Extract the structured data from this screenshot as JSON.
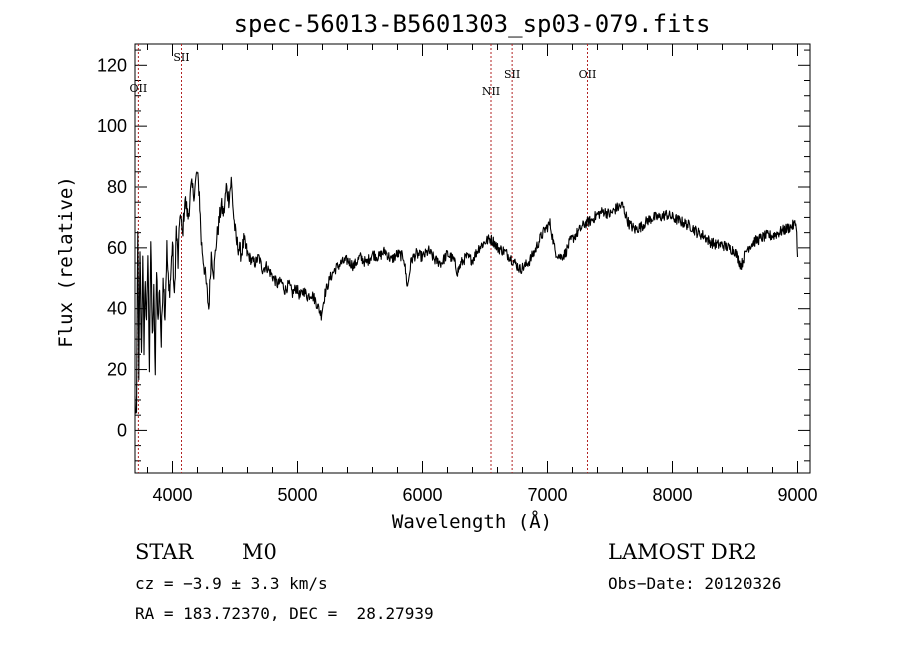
{
  "chart_data": {
    "type": "line",
    "title": "spec-56013-B5601303_sp03-079.fits",
    "xlabel": "Wavelength (Å)",
    "ylabel": "Flux (relative)",
    "xlim": [
      3700,
      9100
    ],
    "ylim": [
      -14,
      127
    ],
    "xticks": [
      4000,
      5000,
      6000,
      7000,
      8000,
      9000
    ],
    "yticks": [
      0,
      20,
      40,
      60,
      80,
      100,
      120
    ],
    "line_color": "#000000",
    "marker_color": "#b22222",
    "spectral_lines": [
      {
        "name": "OII",
        "wavelength": 3727
      },
      {
        "name": "SII",
        "wavelength": 4072
      },
      {
        "name": "NII",
        "wavelength": 6548
      },
      {
        "name": "SII",
        "wavelength": 6717
      },
      {
        "name": "OII",
        "wavelength": 7320
      }
    ],
    "series": [
      {
        "points": [
          [
            3700,
            10
          ],
          [
            3712,
            2
          ],
          [
            3722,
            68
          ],
          [
            3730,
            15
          ],
          [
            3740,
            60
          ],
          [
            3752,
            25
          ],
          [
            3762,
            55
          ],
          [
            3772,
            28
          ],
          [
            3782,
            50
          ],
          [
            3792,
            33
          ],
          [
            3803,
            58
          ],
          [
            3815,
            22
          ],
          [
            3826,
            62
          ],
          [
            3838,
            30
          ],
          [
            3850,
            45
          ],
          [
            3862,
            18
          ],
          [
            3873,
            55
          ],
          [
            3885,
            35
          ],
          [
            3897,
            48
          ],
          [
            3910,
            28
          ],
          [
            3925,
            52
          ],
          [
            3940,
            38
          ],
          [
            3955,
            60
          ],
          [
            3970,
            45
          ],
          [
            3985,
            50
          ],
          [
            4000,
            62
          ],
          [
            4015,
            42
          ],
          [
            4030,
            66
          ],
          [
            4045,
            55
          ],
          [
            4060,
            72
          ],
          [
            4080,
            64
          ],
          [
            4100,
            76
          ],
          [
            4125,
            70
          ],
          [
            4150,
            80
          ],
          [
            4175,
            78
          ],
          [
            4195,
            85
          ],
          [
            4215,
            78
          ],
          [
            4230,
            62
          ],
          [
            4250,
            55
          ],
          [
            4270,
            48
          ],
          [
            4290,
            40
          ],
          [
            4310,
            58
          ],
          [
            4330,
            52
          ],
          [
            4350,
            62
          ],
          [
            4370,
            68
          ],
          [
            4390,
            74
          ],
          [
            4410,
            71
          ],
          [
            4430,
            80
          ],
          [
            4450,
            76
          ],
          [
            4470,
            82
          ],
          [
            4490,
            70
          ],
          [
            4510,
            62
          ],
          [
            4530,
            60
          ],
          [
            4550,
            58
          ],
          [
            4570,
            62
          ],
          [
            4600,
            58
          ],
          [
            4630,
            56
          ],
          [
            4660,
            55
          ],
          [
            4690,
            57
          ],
          [
            4720,
            53
          ],
          [
            4750,
            54
          ],
          [
            4780,
            52
          ],
          [
            4810,
            50
          ],
          [
            4840,
            48
          ],
          [
            4870,
            49
          ],
          [
            4900,
            46
          ],
          [
            4930,
            48
          ],
          [
            4960,
            45
          ],
          [
            4990,
            47
          ],
          [
            5020,
            44
          ],
          [
            5050,
            46
          ],
          [
            5080,
            44
          ],
          [
            5110,
            45
          ],
          [
            5140,
            43
          ],
          [
            5170,
            40
          ],
          [
            5190,
            38
          ],
          [
            5220,
            45
          ],
          [
            5260,
            50
          ],
          [
            5300,
            53
          ],
          [
            5350,
            55
          ],
          [
            5400,
            56
          ],
          [
            5450,
            54
          ],
          [
            5500,
            57
          ],
          [
            5550,
            55
          ],
          [
            5600,
            58
          ],
          [
            5650,
            57
          ],
          [
            5700,
            59
          ],
          [
            5750,
            56
          ],
          [
            5800,
            58
          ],
          [
            5850,
            57
          ],
          [
            5880,
            47
          ],
          [
            5910,
            56
          ],
          [
            5950,
            58
          ],
          [
            6000,
            57
          ],
          [
            6050,
            59
          ],
          [
            6100,
            56
          ],
          [
            6150,
            55
          ],
          [
            6200,
            58
          ],
          [
            6250,
            56
          ],
          [
            6280,
            52
          ],
          [
            6310,
            55
          ],
          [
            6350,
            57
          ],
          [
            6400,
            56
          ],
          [
            6450,
            60
          ],
          [
            6500,
            62
          ],
          [
            6540,
            63
          ],
          [
            6570,
            62
          ],
          [
            6600,
            60
          ],
          [
            6650,
            59
          ],
          [
            6700,
            57
          ],
          [
            6740,
            55
          ],
          [
            6780,
            53
          ],
          [
            6820,
            54
          ],
          [
            6860,
            56
          ],
          [
            6900,
            59
          ],
          [
            6940,
            63
          ],
          [
            6980,
            66
          ],
          [
            7020,
            68
          ],
          [
            7060,
            59
          ],
          [
            7100,
            57
          ],
          [
            7140,
            58
          ],
          [
            7180,
            62
          ],
          [
            7220,
            64
          ],
          [
            7260,
            66
          ],
          [
            7300,
            68
          ],
          [
            7350,
            69
          ],
          [
            7400,
            71
          ],
          [
            7450,
            72
          ],
          [
            7500,
            71
          ],
          [
            7550,
            73
          ],
          [
            7600,
            74
          ],
          [
            7650,
            68
          ],
          [
            7700,
            66
          ],
          [
            7750,
            67
          ],
          [
            7800,
            69
          ],
          [
            7850,
            70
          ],
          [
            7900,
            70
          ],
          [
            7950,
            71
          ],
          [
            8000,
            70
          ],
          [
            8050,
            69
          ],
          [
            8100,
            68
          ],
          [
            8150,
            67
          ],
          [
            8200,
            65
          ],
          [
            8250,
            64
          ],
          [
            8300,
            62
          ],
          [
            8350,
            61
          ],
          [
            8400,
            61
          ],
          [
            8450,
            60
          ],
          [
            8500,
            59
          ],
          [
            8550,
            54
          ],
          [
            8600,
            60
          ],
          [
            8650,
            62
          ],
          [
            8700,
            63
          ],
          [
            8750,
            64
          ],
          [
            8800,
            64
          ],
          [
            8850,
            65
          ],
          [
            8900,
            66
          ],
          [
            8950,
            67
          ],
          [
            8990,
            68
          ],
          [
            9000,
            57
          ]
        ]
      }
    ]
  },
  "info": {
    "object_class": "STAR",
    "subclass": "M0",
    "survey": "LAMOST DR2",
    "velocity": "cz = −3.9 ± 3.3 km/s",
    "obs_date": "Obs−Date: 20120326",
    "coords": "RA = 183.72370, DEC =  28.27939"
  }
}
